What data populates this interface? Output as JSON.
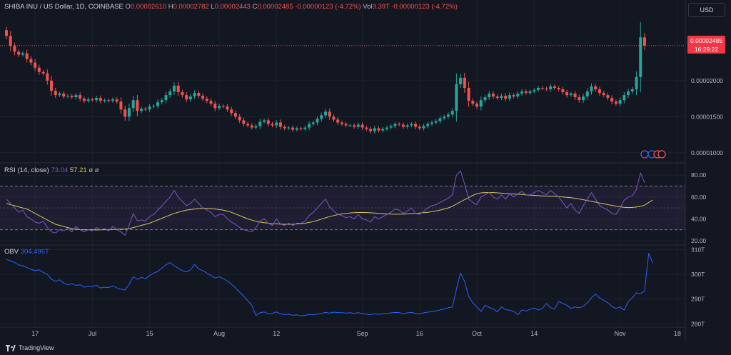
{
  "header": {
    "symbol": "SHIBA INU / US Dollar, 1D, COINBASE",
    "o_label": "O",
    "o_value": "0.00002610",
    "h_label": "H",
    "h_value": "0.00002782",
    "l_label": "L",
    "l_value": "0.00002443",
    "c_label": "C",
    "c_value": "0.00002485",
    "change": "-0.00000123 (-4.72%)",
    "vol_label": "Vol",
    "vol_value": "3.39T",
    "vol_change": "-0.00000123 (-4.72%)"
  },
  "currency_button": "USD",
  "price_tag": {
    "price": "0.00002485",
    "countdown": "16:29:22"
  },
  "rsi_legend": {
    "label": "RSI (14, close)",
    "rsi_value": "73.04",
    "ma_value": "57.21",
    "extra1": "ø",
    "extra2": "ø"
  },
  "obv_legend": {
    "label": "OBV",
    "value": "304.496T"
  },
  "footer": {
    "brand": "TradingView"
  },
  "colors": {
    "background": "#131722",
    "up": "#26a69a",
    "down": "#ef5350",
    "rsi": "#7e57c2",
    "rsi_ma": "#d4c95b",
    "obv": "#2962ff",
    "grid": "#1e222d"
  },
  "chart_data": [
    {
      "type": "candlestick",
      "title": "SHIBA INU / US Dollar, 1D, COINBASE",
      "y_tick_labels": [
        "0.00002000",
        "0.00001500",
        "0.00001000"
      ],
      "y_ticks": [
        2e-05,
        1.5e-05,
        1e-05
      ],
      "ylim": [
        9.2e-06,
        2.88e-05
      ],
      "x_tick_labels": [
        "17",
        "Jul",
        "15",
        "Aug",
        "12",
        "Sep",
        "16",
        "Oct",
        "14",
        "Nov",
        "18"
      ],
      "x_tick_days": [
        7,
        21,
        35,
        52,
        66,
        87,
        101,
        115,
        129,
        150,
        164
      ],
      "closes": [
        2.62e-05,
        2.48e-05,
        2.4e-05,
        2.36e-05,
        2.38e-05,
        2.3e-05,
        2.25e-05,
        2.18e-05,
        2.12e-05,
        2.1e-05,
        2e-05,
        1.86e-05,
        1.8e-05,
        1.82e-05,
        1.78e-05,
        1.79e-05,
        1.77e-05,
        1.8e-05,
        1.75e-05,
        1.72e-05,
        1.74e-05,
        1.73e-05,
        1.76e-05,
        1.72e-05,
        1.73e-05,
        1.72e-05,
        1.74e-05,
        1.71e-05,
        1.6e-05,
        1.5e-05,
        1.62e-05,
        1.73e-05,
        1.58e-05,
        1.61e-05,
        1.6e-05,
        1.64e-05,
        1.65e-05,
        1.7e-05,
        1.73e-05,
        1.8e-05,
        1.85e-05,
        1.93e-05,
        1.84e-05,
        1.8e-05,
        1.74e-05,
        1.78e-05,
        1.83e-05,
        1.79e-05,
        1.75e-05,
        1.72e-05,
        1.68e-05,
        1.62e-05,
        1.65e-05,
        1.64e-05,
        1.6e-05,
        1.55e-05,
        1.5e-05,
        1.45e-05,
        1.4e-05,
        1.38e-05,
        1.35e-05,
        1.37e-05,
        1.43e-05,
        1.45e-05,
        1.4e-05,
        1.38e-05,
        1.42e-05,
        1.36e-05,
        1.34e-05,
        1.35e-05,
        1.32e-05,
        1.34e-05,
        1.33e-05,
        1.35e-05,
        1.4e-05,
        1.42e-05,
        1.47e-05,
        1.52e-05,
        1.57e-05,
        1.5e-05,
        1.46e-05,
        1.42e-05,
        1.4e-05,
        1.38e-05,
        1.38e-05,
        1.36e-05,
        1.39e-05,
        1.35e-05,
        1.33e-05,
        1.3e-05,
        1.34e-05,
        1.31e-05,
        1.33e-05,
        1.35e-05,
        1.37e-05,
        1.4e-05,
        1.39e-05,
        1.36e-05,
        1.38e-05,
        1.4e-05,
        1.36e-05,
        1.34e-05,
        1.37e-05,
        1.4e-05,
        1.42e-05,
        1.44e-05,
        1.48e-05,
        1.5e-05,
        1.53e-05,
        1.58e-05,
        1.95e-05,
        2.04e-05,
        1.9e-05,
        1.72e-05,
        1.68e-05,
        1.64e-05,
        1.73e-05,
        1.77e-05,
        1.82e-05,
        1.78e-05,
        1.76e-05,
        1.79e-05,
        1.75e-05,
        1.8e-05,
        1.78e-05,
        1.82e-05,
        1.85e-05,
        1.83e-05,
        1.85e-05,
        1.87e-05,
        1.9e-05,
        1.89e-05,
        1.88e-05,
        1.92e-05,
        1.9e-05,
        1.88e-05,
        1.84e-05,
        1.8e-05,
        1.82e-05,
        1.77e-05,
        1.73e-05,
        1.78e-05,
        1.85e-05,
        1.92e-05,
        1.88e-05,
        1.83e-05,
        1.8e-05,
        1.76e-05,
        1.71e-05,
        1.68e-05,
        1.73e-05,
        1.8e-05,
        1.85e-05,
        1.88e-05,
        2.05e-05,
        2.6e-05,
        2.485e-05
      ]
    },
    {
      "type": "line",
      "title": "RSI (14, close)",
      "y_tick_labels": [
        "80.00",
        "60.00",
        "40.00",
        "20.00"
      ],
      "y_ticks": [
        80,
        60,
        40,
        20
      ],
      "ylim": [
        18,
        86
      ],
      "bands": {
        "upper": 70,
        "middle": 50,
        "lower": 30
      },
      "series": [
        {
          "name": "RSI",
          "values": [
            58,
            54,
            50,
            46,
            48,
            42,
            40,
            37,
            36,
            38,
            32,
            28,
            27,
            30,
            29,
            31,
            28,
            33,
            30,
            28,
            30,
            29,
            32,
            30,
            31,
            29,
            33,
            30,
            28,
            25,
            34,
            45,
            38,
            39,
            38,
            42,
            44,
            48,
            52,
            56,
            60,
            66,
            60,
            56,
            52,
            54,
            58,
            54,
            50,
            48,
            46,
            42,
            44,
            44,
            40,
            37,
            35,
            32,
            30,
            29,
            28,
            32,
            38,
            40,
            36,
            34,
            40,
            35,
            34,
            36,
            34,
            36,
            36,
            38,
            43,
            46,
            50,
            54,
            58,
            51,
            47,
            44,
            43,
            41,
            42,
            40,
            44,
            40,
            39,
            37,
            42,
            40,
            42,
            44,
            46,
            49,
            48,
            45,
            47,
            50,
            45,
            44,
            47,
            50,
            52,
            53,
            55,
            57,
            59,
            62,
            80,
            84,
            72,
            58,
            55,
            53,
            60,
            62,
            64,
            60,
            58,
            62,
            58,
            63,
            60,
            63,
            65,
            62,
            62,
            64,
            66,
            64,
            62,
            66,
            63,
            60,
            55,
            50,
            54,
            48,
            45,
            52,
            58,
            64,
            58,
            52,
            50,
            48,
            45,
            44,
            50,
            57,
            60,
            61,
            67,
            82,
            73.04
          ]
        },
        {
          "name": "MA",
          "values": [
            54,
            53,
            52,
            51,
            50,
            49,
            47,
            45,
            43,
            41,
            39,
            37,
            35,
            34,
            33,
            32,
            31,
            30.5,
            30,
            30,
            30,
            30,
            29.8,
            29.9,
            30,
            30,
            30.2,
            30.4,
            30.5,
            30.6,
            31,
            32,
            33,
            34,
            35,
            36,
            37.5,
            39,
            40.5,
            42,
            43.5,
            45,
            46,
            47,
            48,
            48.5,
            49,
            49.3,
            49.5,
            49.5,
            49.3,
            49,
            48.5,
            48,
            47,
            46,
            44.5,
            43,
            41.5,
            40,
            38.8,
            37.8,
            37,
            36.5,
            36,
            35.5,
            35.4,
            35.2,
            35,
            35,
            35,
            35.3,
            35.6,
            36,
            36.7,
            37.5,
            38.5,
            39.7,
            41,
            42,
            43,
            43.8,
            44.5,
            45,
            45.4,
            45.6,
            45.8,
            45.8,
            45.7,
            45.5,
            45.3,
            45,
            44.8,
            44.5,
            44.3,
            44.2,
            44.2,
            44.3,
            44.5,
            44.8,
            45,
            45.3,
            45.6,
            46,
            46.5,
            47.2,
            48,
            49,
            50,
            51.5,
            53.5,
            55.5,
            57.5,
            59.5,
            61.5,
            63,
            63.8,
            64,
            64,
            64,
            63.8,
            63.5,
            63.2,
            63,
            62.7,
            62.5,
            62.3,
            62,
            61.7,
            61.5,
            61.2,
            61,
            60.8,
            60.6,
            60.5,
            60.3,
            60,
            59.7,
            59.3,
            58.8,
            58.2,
            57.5,
            56.8,
            56,
            55.3,
            54.5,
            53.8,
            53,
            52.3,
            51.6,
            51,
            50.5,
            50.3,
            50.4,
            50.8,
            51.5,
            52.5,
            55,
            57.21
          ]
        }
      ]
    },
    {
      "type": "line",
      "title": "OBV",
      "y_tick_labels": [
        "310T",
        "300T",
        "290T",
        "280T"
      ],
      "y_ticks": [
        310,
        300,
        290,
        280
      ],
      "ylim": [
        279.5,
        311
      ],
      "series": [
        {
          "name": "OBV",
          "values": [
            306,
            305.5,
            304.8,
            303.8,
            303.5,
            302.8,
            302,
            301.5,
            301.8,
            300.8,
            300,
            298,
            297.2,
            297.8,
            296.5,
            295.8,
            296.2,
            295.5,
            295.8,
            294.8,
            295.2,
            295,
            295.6,
            294.5,
            294.8,
            294.6,
            295.3,
            294.5,
            294,
            293.7,
            296,
            299,
            298,
            298.8,
            298.2,
            299.5,
            300.5,
            301.2,
            302.5,
            303.8,
            304.8,
            303.5,
            302.5,
            301.5,
            301,
            301.8,
            304,
            302.2,
            301.5,
            300.5,
            299.5,
            298.5,
            299,
            298.3,
            297.3,
            296,
            294.5,
            292.8,
            291.2,
            289.3,
            287.5,
            283.3,
            284.5,
            284.8,
            284,
            284.2,
            284.8,
            284,
            283.7,
            283.9,
            283.4,
            283.6,
            283.2,
            283.4,
            283.8,
            283.6,
            283.9,
            284.2,
            284.6,
            284.3,
            284.7,
            284.5,
            284.5,
            284.3,
            284.5,
            284.2,
            284.5,
            284.1,
            283.9,
            283.7,
            284.1,
            283.8,
            284.1,
            284.2,
            284.4,
            284.6,
            284.5,
            284.1,
            284.4,
            284.6,
            284.2,
            284.1,
            284.4,
            284.7,
            284.9,
            285.2,
            285.6,
            286,
            286.5,
            286.8,
            294,
            300.5,
            297.2,
            291,
            288.5,
            286.8,
            285,
            287.5,
            286.6,
            286,
            284.8,
            286.8,
            285.7,
            285.5,
            285,
            283.7,
            285.6,
            285.2,
            285.8,
            286.4,
            285.6,
            286.2,
            288.2,
            286.5,
            286,
            289,
            288.2,
            287.5,
            286.2,
            286.8,
            286.5,
            287,
            288.5,
            290.5,
            292,
            290.5,
            289.5,
            288.5,
            287,
            286.2,
            286.8,
            285.5,
            289,
            290.5,
            292.5,
            292.2,
            293.3,
            308.5,
            304.5
          ]
        }
      ]
    }
  ]
}
